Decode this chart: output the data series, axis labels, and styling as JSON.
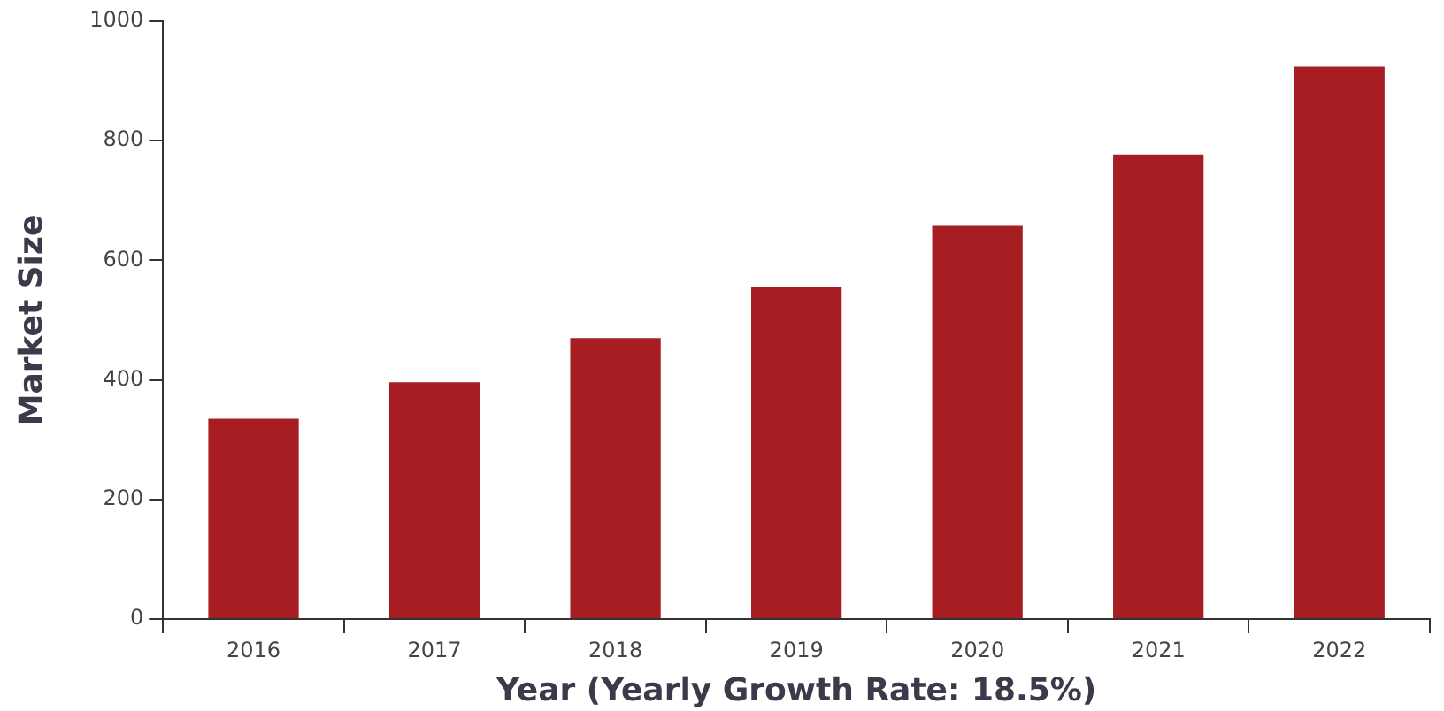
{
  "chart_data": {
    "type": "bar",
    "xlabel": "Year (Yearly Growth Rate: 18.5%)",
    "ylabel": "Market Size",
    "categories": [
      "2016",
      "2017",
      "2018",
      "2019",
      "2020",
      "2021",
      "2022"
    ],
    "values": [
      335,
      396,
      470,
      555,
      659,
      777,
      924
    ],
    "color": "#a61e22",
    "ylim": [
      0,
      1000
    ],
    "yticks": [
      0,
      200,
      400,
      600,
      800,
      1000
    ],
    "grid": false,
    "legend": false
  }
}
